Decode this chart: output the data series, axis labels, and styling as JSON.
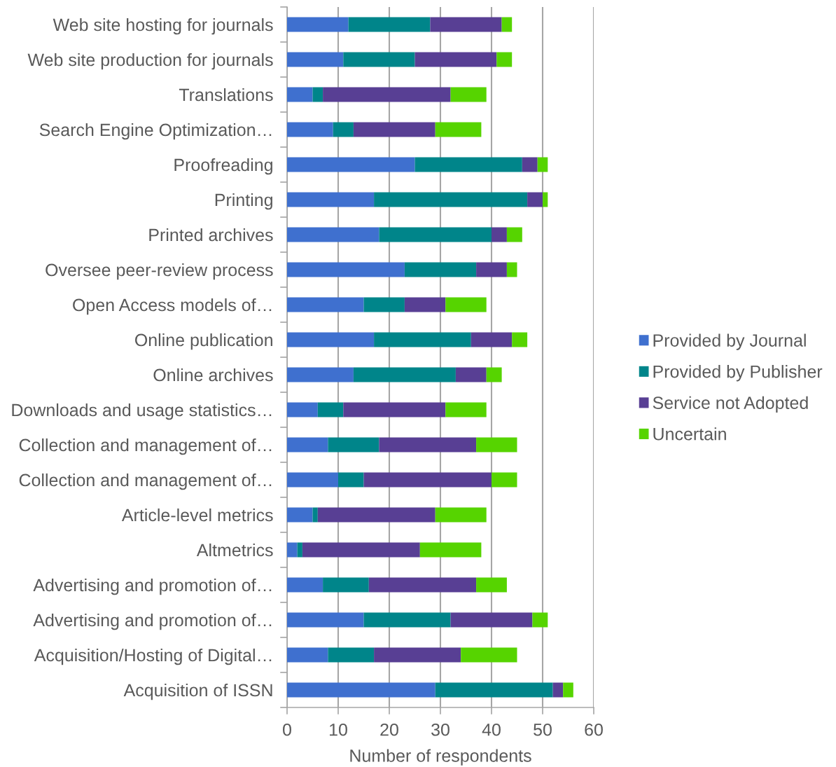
{
  "chart_data": {
    "type": "bar",
    "orientation": "horizontal",
    "stacked": true,
    "categories": [
      "Web site hosting for journals",
      "Web site production for journals",
      "Translations",
      "Search Engine Optimization…",
      "Proofreading",
      "Printing",
      "Printed archives",
      "Oversee peer-review process",
      "Open Access models of…",
      "Online publication",
      "Online archives",
      "Downloads and usage statistics…",
      "Collection and management of…",
      "Collection and management of…",
      "Article-level metrics",
      "Altmetrics",
      "Advertising and promotion of…",
      "Advertising and promotion of…",
      "Acquisition/Hosting of Digital…",
      "Acquisition of ISSN"
    ],
    "series": [
      {
        "name": "Provided by Journal",
        "color": "#3f70cf",
        "values": [
          12,
          11,
          5,
          9,
          25,
          17,
          18,
          23,
          15,
          17,
          13,
          6,
          8,
          10,
          5,
          2,
          7,
          15,
          8,
          29
        ]
      },
      {
        "name": "Provided by Publisher",
        "color": "#00858a",
        "values": [
          16,
          14,
          2,
          4,
          21,
          30,
          22,
          14,
          8,
          19,
          20,
          5,
          10,
          5,
          1,
          1,
          9,
          17,
          9,
          23
        ]
      },
      {
        "name": "Service not Adopted",
        "color": "#583f94",
        "values": [
          14,
          16,
          25,
          16,
          3,
          3,
          3,
          6,
          8,
          8,
          6,
          20,
          19,
          25,
          23,
          23,
          21,
          16,
          17,
          2
        ]
      },
      {
        "name": "Uncertain",
        "color": "#56d400",
        "values": [
          2,
          3,
          7,
          9,
          2,
          1,
          3,
          2,
          8,
          3,
          3,
          8,
          8,
          5,
          10,
          12,
          6,
          3,
          11,
          2
        ]
      }
    ],
    "xlabel": "Number of respondents",
    "xlim": [
      0,
      60
    ],
    "xticks": [
      0,
      10,
      20,
      30,
      40,
      50,
      60
    ],
    "grid": "x",
    "legend": "right"
  }
}
